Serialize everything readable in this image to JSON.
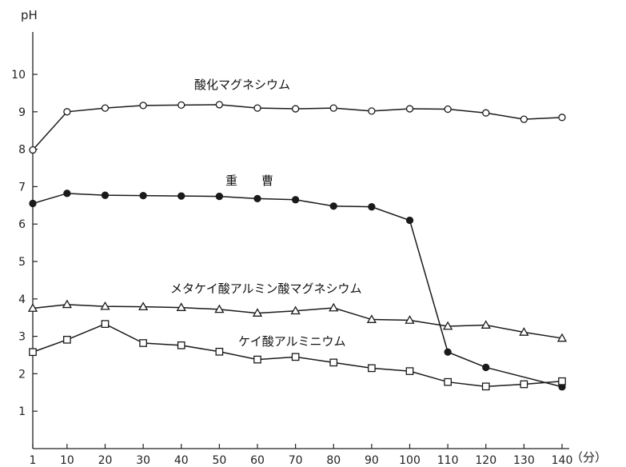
{
  "chart_data": {
    "type": "line",
    "ylabel": "pH",
    "xunit": "（分）",
    "x": [
      1,
      10,
      20,
      30,
      40,
      50,
      60,
      70,
      80,
      90,
      100,
      110,
      120,
      130,
      140
    ],
    "xticks": [
      1,
      10,
      20,
      30,
      40,
      50,
      60,
      70,
      80,
      90,
      100,
      110,
      120,
      130,
      140
    ],
    "yticks": [
      1,
      2,
      3,
      4,
      5,
      6,
      7,
      8,
      9,
      10
    ],
    "xlim": [
      1,
      140
    ],
    "ylim": [
      0,
      10
    ],
    "grid": false,
    "legend": "none",
    "series": [
      {
        "name": "酸化マグネシウム",
        "marker": "open-circle",
        "values": [
          7.98,
          9.0,
          9.1,
          9.17,
          9.18,
          9.19,
          9.1,
          9.08,
          9.1,
          9.02,
          9.08,
          9.07,
          8.97,
          8.8,
          8.85
        ]
      },
      {
        "name": "重　　曹",
        "marker": "filled-circle",
        "values": [
          6.55,
          6.82,
          6.77,
          6.76,
          6.75,
          6.74,
          6.68,
          6.65,
          6.48,
          6.46,
          6.1,
          2.58,
          2.17,
          null,
          1.65
        ]
      },
      {
        "name": "メタケイ酸アルミン酸マグネシウム",
        "marker": "open-triangle",
        "values": [
          3.75,
          3.85,
          3.8,
          3.79,
          3.77,
          3.72,
          3.62,
          3.68,
          3.76,
          3.45,
          3.43,
          3.27,
          3.3,
          3.11,
          2.95
        ]
      },
      {
        "name": "ケイ酸アルミニウム",
        "marker": "open-square",
        "values": [
          2.58,
          2.91,
          3.33,
          2.82,
          2.76,
          2.59,
          2.38,
          2.45,
          2.3,
          2.15,
          2.07,
          1.78,
          1.66,
          1.72,
          1.8
        ]
      }
    ]
  }
}
